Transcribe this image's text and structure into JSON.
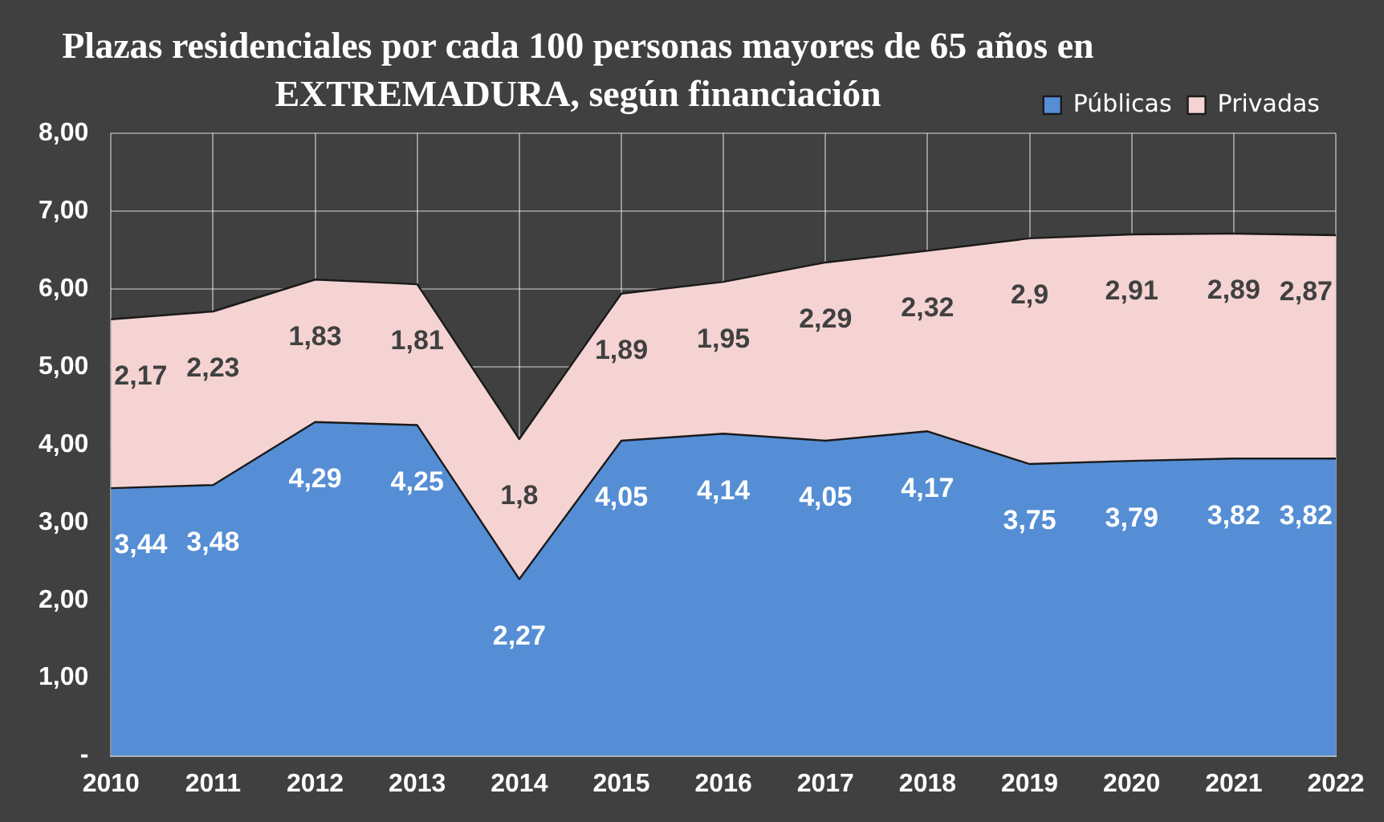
{
  "chart_data": {
    "type": "area",
    "title": "Plazas residenciales por cada 100 personas mayores de 65 años en EXTREMADURA, según financiación",
    "categories": [
      "2010",
      "2011",
      "2012",
      "2013",
      "2014",
      "2015",
      "2016",
      "2017",
      "2018",
      "2019",
      "2020",
      "2021",
      "2022"
    ],
    "stacked": true,
    "series": [
      {
        "name": "Públicas",
        "color": "#558ed5",
        "values": [
          3.44,
          3.48,
          4.29,
          4.25,
          2.27,
          4.05,
          4.14,
          4.05,
          4.17,
          3.75,
          3.79,
          3.82,
          3.82
        ],
        "value_labels": [
          "3,44",
          "3,48",
          "4,29",
          "4,25",
          "2,27",
          "4,05",
          "4,14",
          "4,05",
          "4,17",
          "3,75",
          "3,79",
          "3,82",
          "3,82"
        ]
      },
      {
        "name": "Privadas",
        "color": "#f5d3d3",
        "values": [
          2.17,
          2.23,
          1.83,
          1.81,
          1.8,
          1.89,
          1.95,
          2.29,
          2.32,
          2.9,
          2.91,
          2.89,
          2.87
        ],
        "value_labels": [
          "2,17",
          "2,23",
          "1,83",
          "1,81",
          "1,8",
          "1,89",
          "1,95",
          "2,29",
          "2,32",
          "2,9",
          "2,91",
          "2,89",
          "2,87"
        ]
      }
    ],
    "ylim": [
      0,
      8
    ],
    "yticks": [
      {
        "value": 0,
        "label": "-"
      },
      {
        "value": 1,
        "label": "1,00"
      },
      {
        "value": 2,
        "label": "2,00"
      },
      {
        "value": 3,
        "label": "3,00"
      },
      {
        "value": 4,
        "label": "4,00"
      },
      {
        "value": 5,
        "label": "5,00"
      },
      {
        "value": 6,
        "label": "6,00"
      },
      {
        "value": 7,
        "label": "7,00"
      },
      {
        "value": 8,
        "label": "8,00"
      }
    ],
    "grid": true,
    "legend": "top right"
  }
}
